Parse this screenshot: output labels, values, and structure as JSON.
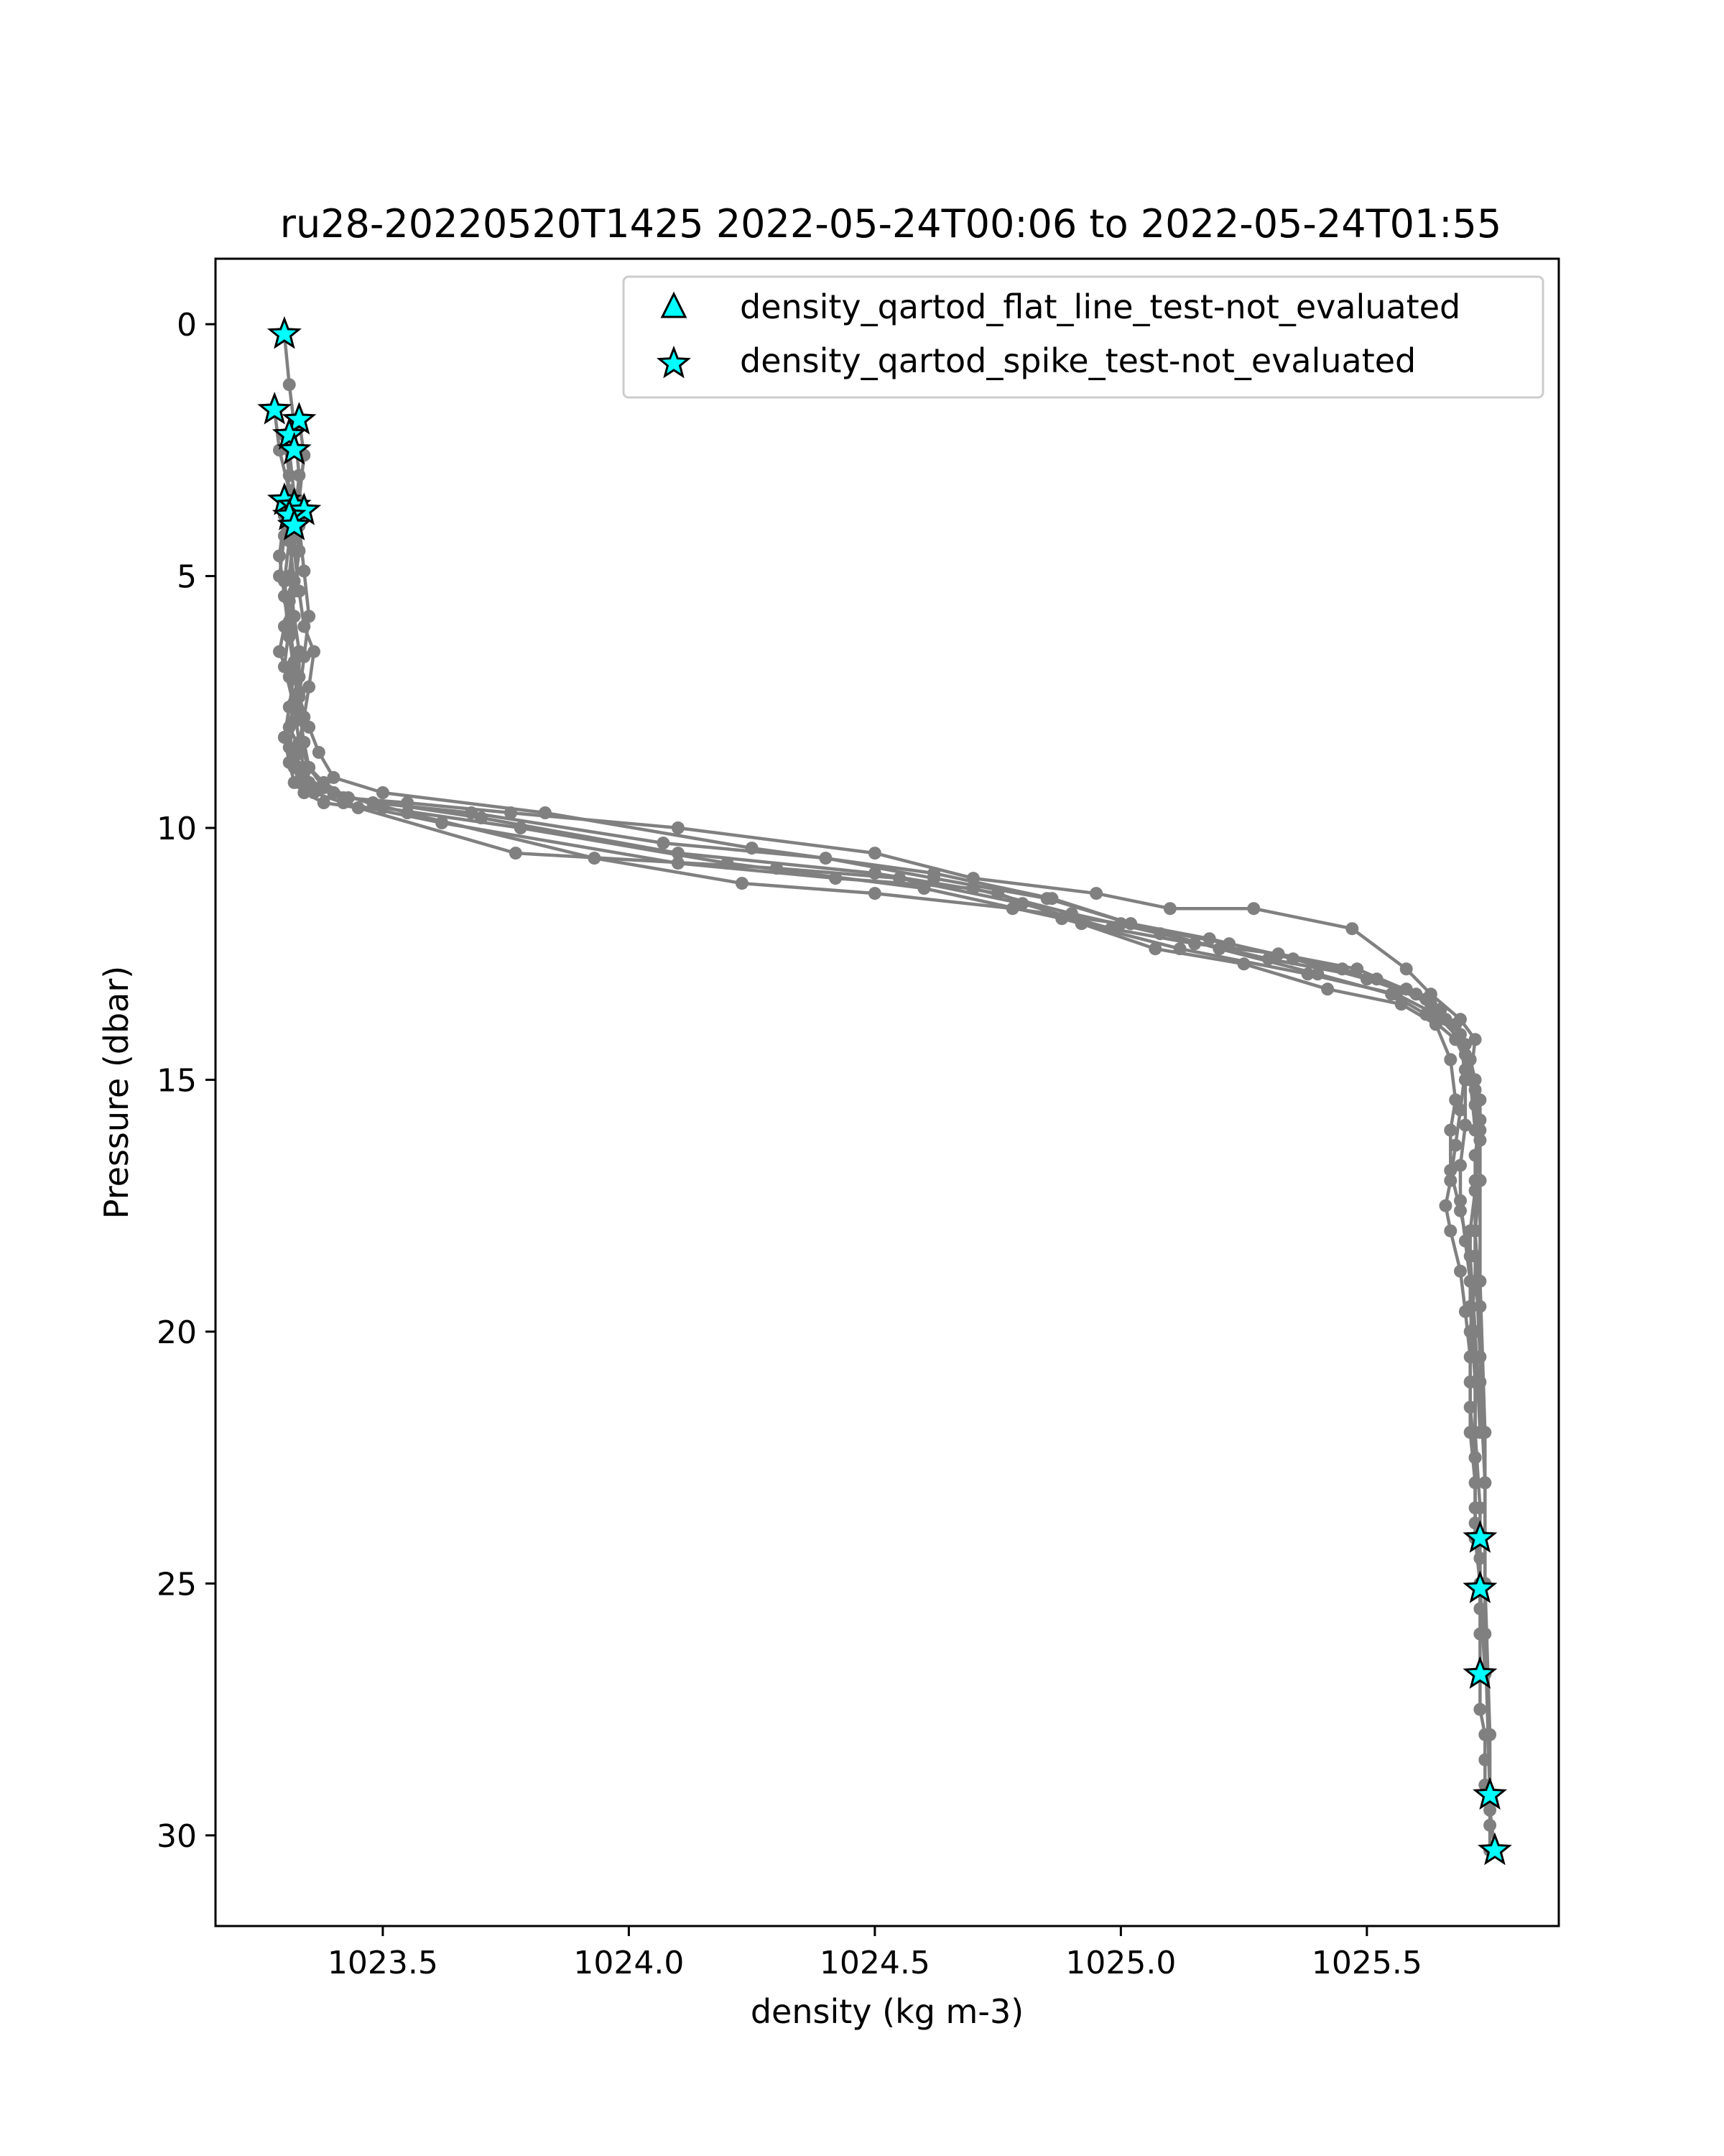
{
  "chart_data": {
    "type": "line",
    "title": "ru28-20220520T1425 2022-05-24T00:06 to 2022-05-24T01:55",
    "xlabel": "density (kg m-3)",
    "ylabel": "Pressure (dbar)",
    "xlim": [
      1023.16,
      1025.89
    ],
    "ylim": [
      31.8,
      -1.3
    ],
    "y_inverted": true,
    "x_ticks": [
      1023.5,
      1024.0,
      1024.5,
      1025.0,
      1025.5
    ],
    "x_tick_labels": [
      "1023.5",
      "1024.0",
      "1024.5",
      "1025.0",
      "1025.5"
    ],
    "y_ticks": [
      0,
      5,
      10,
      15,
      20,
      25,
      30
    ],
    "y_tick_labels": [
      "0",
      "5",
      "10",
      "15",
      "20",
      "25",
      "30"
    ],
    "grid": false,
    "legend_position": "top-right",
    "colors": {
      "line": "#808080",
      "flag_fill": "#00ffff",
      "flag_edge": "#000000"
    },
    "legend": [
      {
        "label": "density_qartod_flat_line_test-not_evaluated",
        "marker": "triangle"
      },
      {
        "label": "density_qartod_spike_test-not_evaluated",
        "marker": "star"
      }
    ],
    "series": [
      {
        "x": [
          1023.3,
          1023.31,
          1023.32,
          1023.33,
          1023.32,
          1023.31,
          1023.32,
          1023.33,
          1023.33,
          1023.32,
          1023.31,
          1023.33,
          1023.34,
          1023.35,
          1023.4,
          1023.42,
          1023.55,
          1023.76,
          1024.1,
          1024.5,
          1024.7,
          1024.95,
          1025.1,
          1025.27,
          1025.47,
          1025.58,
          1025.63,
          1025.69,
          1025.72,
          1025.71,
          1025.72,
          1025.73,
          1025.72,
          1025.72,
          1025.71,
          1025.71,
          1025.71,
          1025.72,
          1025.72,
          1025.73,
          1025.73,
          1025.73,
          1025.73,
          1025.74,
          1025.74,
          1025.74,
          1025.75,
          1025.75,
          1025.75
        ],
        "y": [
          0.2,
          1.2,
          2.0,
          3.0,
          4.0,
          5.0,
          5.8,
          6.5,
          7.0,
          7.5,
          8.0,
          8.4,
          8.8,
          9.1,
          9.3,
          9.4,
          9.5,
          9.7,
          10.0,
          10.5,
          11.0,
          11.3,
          11.6,
          11.6,
          12.0,
          12.8,
          13.3,
          13.8,
          14.2,
          15.0,
          16.0,
          17.0,
          18.0,
          19.0,
          20.0,
          21.0,
          22.0,
          23.0,
          24.1,
          25.0,
          26.0,
          26.8,
          27.5,
          28.0,
          28.5,
          29.0,
          29.3,
          29.8,
          30.3
        ]
      },
      {
        "x": [
          1023.28,
          1023.29,
          1023.31,
          1023.3,
          1023.29,
          1023.31,
          1023.3,
          1023.29,
          1023.31,
          1023.32,
          1023.3,
          1023.31,
          1023.32,
          1023.34,
          1023.38,
          1023.45,
          1023.77,
          1024.3,
          1024.55,
          1024.8,
          1024.98,
          1025.15,
          1025.32,
          1025.48,
          1025.6,
          1025.66,
          1025.7,
          1025.72,
          1025.73,
          1025.72,
          1025.72,
          1025.71,
          1025.71,
          1025.72,
          1025.72,
          1025.72,
          1025.73,
          1025.73,
          1025.73
        ],
        "y": [
          1.7,
          2.5,
          3.3,
          4.2,
          5.0,
          5.5,
          6.0,
          6.5,
          7.0,
          7.6,
          8.2,
          8.7,
          9.1,
          9.3,
          9.5,
          9.6,
          10.5,
          10.8,
          11.0,
          11.5,
          12.0,
          12.3,
          12.5,
          12.8,
          13.3,
          13.8,
          14.5,
          15.2,
          15.8,
          16.5,
          17.2,
          18.0,
          19.5,
          21.0,
          22.5,
          23.8,
          24.5,
          25.0,
          25.5
        ]
      },
      {
        "x": [
          1023.33,
          1023.34,
          1023.33,
          1023.32,
          1023.33,
          1023.34,
          1023.36,
          1023.35,
          1023.34,
          1023.33,
          1023.32,
          1023.34,
          1023.36,
          1023.4,
          1023.48,
          1023.68,
          1024.07,
          1024.4,
          1024.62,
          1024.85,
          1025.02,
          1025.18,
          1025.35,
          1025.5,
          1025.62,
          1025.68,
          1025.7,
          1025.69,
          1025.68,
          1025.67,
          1025.66,
          1025.67,
          1025.69,
          1025.7,
          1025.71,
          1025.71,
          1025.72,
          1025.72,
          1025.72
        ],
        "y": [
          1.9,
          2.6,
          3.5,
          4.5,
          5.3,
          6.0,
          6.5,
          7.2,
          7.8,
          8.3,
          8.6,
          8.9,
          9.2,
          9.3,
          9.5,
          9.7,
          10.3,
          10.6,
          11.0,
          11.4,
          11.9,
          12.2,
          12.6,
          13.0,
          13.4,
          13.9,
          14.8,
          15.6,
          16.3,
          17.0,
          17.5,
          18.0,
          18.8,
          19.6,
          20.5,
          21.5,
          22.5,
          23.5,
          24.1
        ]
      },
      {
        "x": [
          1023.3,
          1023.31,
          1023.3,
          1023.29,
          1023.3,
          1023.31,
          1023.32,
          1023.31,
          1023.3,
          1023.33,
          1023.35,
          1023.4,
          1023.55,
          1023.93,
          1024.23,
          1024.5,
          1024.78,
          1025.0,
          1025.22,
          1025.45,
          1025.58,
          1025.65,
          1025.69,
          1025.7,
          1025.7,
          1025.69,
          1025.69,
          1025.7,
          1025.71,
          1025.72,
          1025.72,
          1025.73,
          1025.73,
          1025.74
        ],
        "y": [
          2.2,
          3.0,
          3.8,
          4.6,
          5.4,
          6.2,
          6.9,
          7.6,
          8.2,
          8.8,
          9.1,
          9.3,
          9.7,
          10.6,
          11.1,
          11.3,
          11.6,
          11.9,
          12.3,
          12.8,
          13.2,
          13.6,
          14.1,
          15.0,
          15.9,
          16.7,
          17.4,
          18.2,
          19.0,
          20.5,
          22.0,
          23.5,
          25.0,
          26.8
        ]
      },
      {
        "x": [
          1023.31,
          1023.32,
          1023.31,
          1023.3,
          1023.31,
          1023.32,
          1023.33,
          1023.32,
          1023.31,
          1023.32,
          1023.33,
          1023.36,
          1023.42,
          1023.62,
          1024.1,
          1024.42,
          1024.7,
          1024.9,
          1025.08,
          1025.3,
          1025.52,
          1025.63,
          1025.68,
          1025.71,
          1025.73,
          1025.73,
          1025.72,
          1025.72,
          1025.73,
          1025.74,
          1025.74,
          1025.75
        ],
        "y": [
          2.5,
          3.4,
          4.3,
          5.1,
          5.9,
          6.7,
          7.3,
          7.9,
          8.4,
          8.8,
          9.1,
          9.3,
          9.5,
          9.9,
          10.7,
          11.0,
          11.2,
          11.7,
          12.1,
          12.6,
          13.0,
          13.5,
          13.9,
          14.6,
          15.4,
          16.2,
          17.0,
          18.5,
          20.5,
          23.0,
          26.0,
          29.2
        ]
      },
      {
        "x": [
          1023.3,
          1023.31,
          1023.32,
          1023.31,
          1023.3,
          1023.32,
          1023.33,
          1023.35,
          1023.38,
          1023.5,
          1023.78,
          1024.2,
          1024.6,
          1024.88,
          1025.12,
          1025.38,
          1025.56,
          1025.64,
          1025.7,
          1025.72,
          1025.73,
          1025.73,
          1025.74,
          1025.74,
          1025.75,
          1025.75,
          1025.76
        ],
        "y": [
          3.5,
          4.3,
          5.1,
          6.0,
          6.8,
          7.6,
          8.3,
          8.8,
          9.2,
          9.6,
          10.0,
          10.7,
          11.2,
          11.8,
          12.4,
          12.9,
          13.3,
          13.7,
          14.3,
          15.5,
          17.0,
          19.0,
          22.0,
          25.0,
          28.0,
          29.5,
          30.3
        ]
      },
      {
        "x": [
          1023.32,
          1023.33,
          1023.32,
          1023.31,
          1023.32,
          1023.33,
          1023.34,
          1023.35,
          1023.38,
          1023.43,
          1023.7,
          1024.1,
          1024.5,
          1024.75,
          1024.92,
          1025.07,
          1025.25,
          1025.42,
          1025.57,
          1025.64,
          1025.67,
          1025.68,
          1025.67,
          1025.67,
          1025.69,
          1025.71,
          1025.72,
          1025.73
        ],
        "y": [
          3.7,
          4.5,
          5.3,
          6.1,
          6.9,
          7.7,
          8.3,
          8.8,
          9.1,
          9.4,
          9.8,
          10.5,
          10.9,
          11.3,
          11.9,
          12.4,
          12.7,
          13.2,
          13.5,
          13.9,
          14.6,
          15.4,
          16.0,
          16.8,
          17.6,
          18.5,
          20.0,
          22.0
        ]
      },
      {
        "x": [
          1023.33,
          1023.34,
          1023.35,
          1023.34,
          1023.33,
          1023.35,
          1023.37,
          1023.4,
          1023.5,
          1023.83,
          1024.25,
          1024.62,
          1024.86,
          1025.02,
          1025.2,
          1025.4,
          1025.55,
          1025.62,
          1025.68,
          1025.72,
          1025.73,
          1025.73,
          1025.72,
          1025.73,
          1025.73,
          1025.74
        ],
        "y": [
          4.0,
          4.9,
          5.8,
          6.6,
          7.4,
          8.0,
          8.5,
          9.0,
          9.3,
          9.7,
          10.4,
          10.9,
          11.4,
          11.9,
          12.4,
          12.9,
          13.3,
          13.7,
          14.2,
          15.0,
          16.0,
          17.0,
          18.0,
          19.5,
          21.0,
          23.0
        ]
      }
    ],
    "flags_spike_test": {
      "label": "density_qartod_spike_test-not_evaluated",
      "x": [
        1023.3,
        1023.28,
        1023.33,
        1023.31,
        1023.32,
        1023.3,
        1023.32,
        1023.34,
        1023.31,
        1023.32,
        1025.73,
        1025.73,
        1025.73,
        1025.75,
        1025.76
      ],
      "y": [
        0.2,
        1.7,
        1.9,
        2.2,
        2.5,
        3.5,
        3.6,
        3.7,
        3.8,
        4.0,
        24.1,
        25.1,
        26.8,
        29.2,
        30.3
      ]
    },
    "flags_flat_line_test": {
      "label": "density_qartod_flat_line_test-not_evaluated",
      "x": [],
      "y": []
    }
  }
}
